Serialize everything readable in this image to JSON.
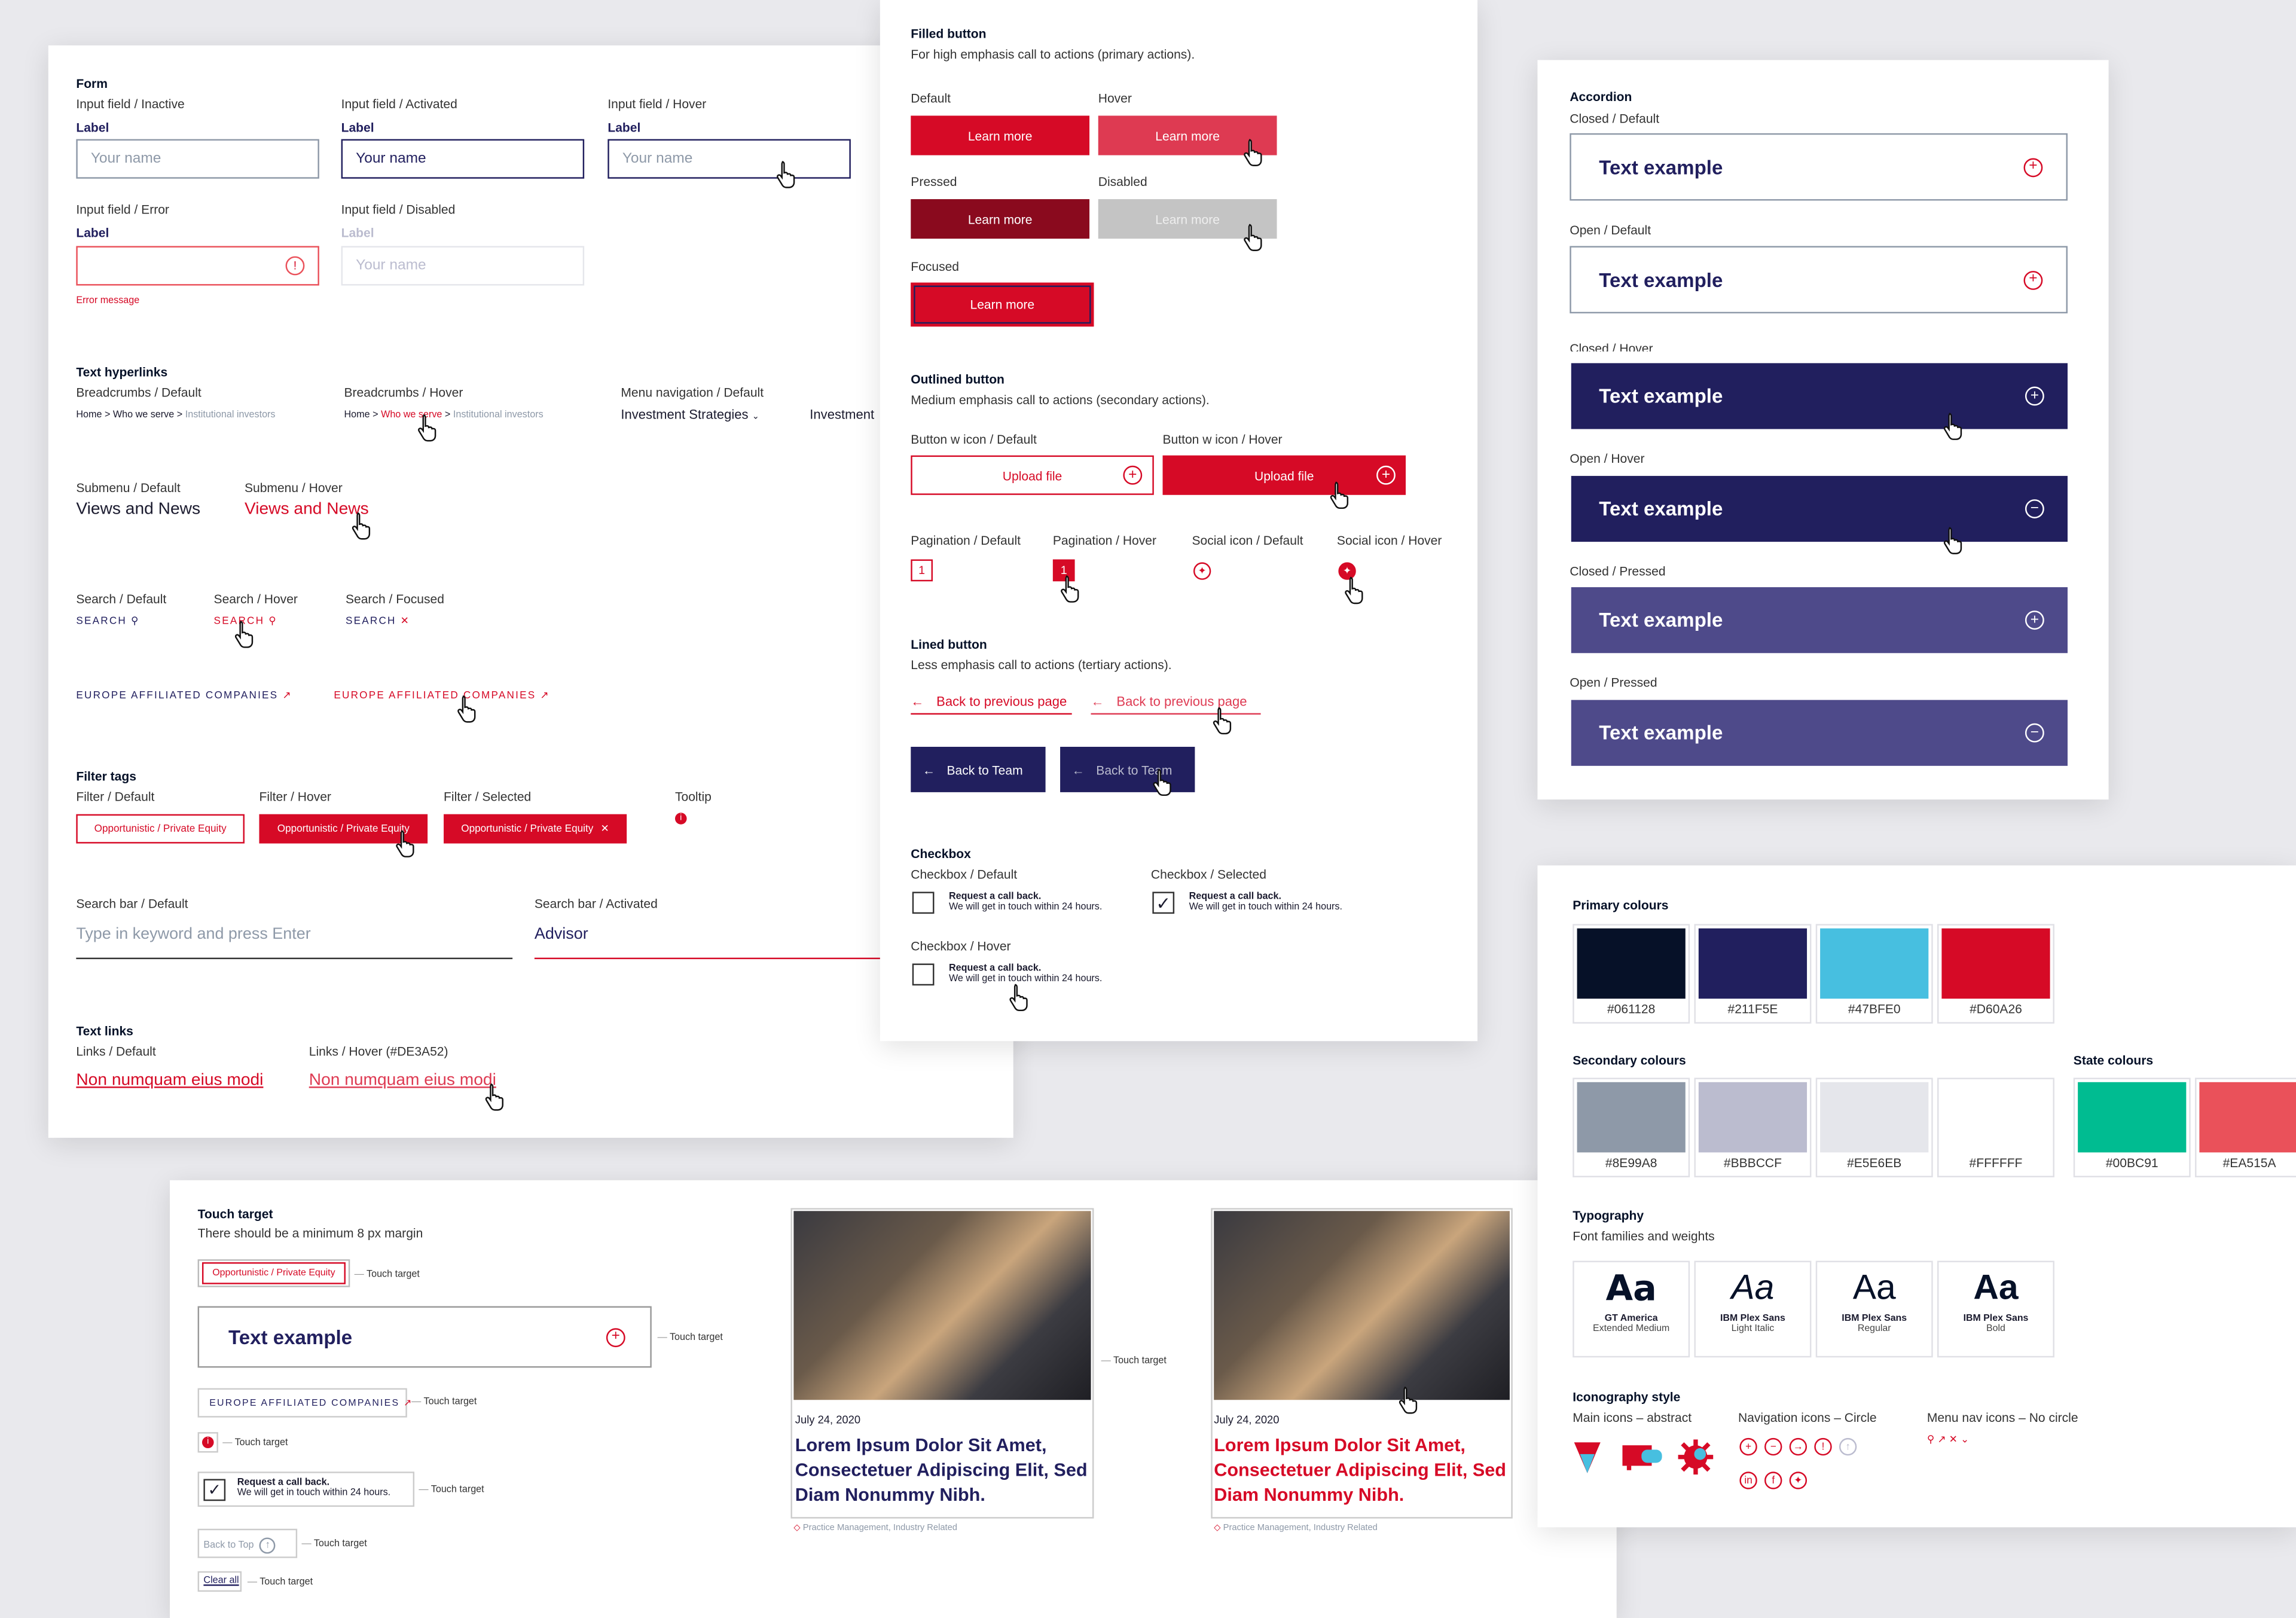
{
  "colors": {
    "dark": "#061128",
    "navy": "#211F5E",
    "sky": "#47BFE0",
    "red": "#D60A26",
    "grey": "#8E99A8",
    "lilac": "#BBBCCF",
    "light": "#E5E6EB",
    "white": "#FFFFFF",
    "green": "#00BC91",
    "coral": "#EA515A",
    "hover_red": "#DE3A52",
    "pressed_red": "#8A0A1E",
    "disabled": "#C4C4C4",
    "acc_pressed": "#4E4A8A"
  },
  "form": {
    "title": "Form",
    "inactive": {
      "caption": "Input field / Inactive",
      "label": "Label",
      "placeholder": "Your name"
    },
    "activated": {
      "caption": "Input field / Activated",
      "label": "Label",
      "value": "Your name"
    },
    "hover": {
      "caption": "Input field / Hover",
      "label": "Label",
      "placeholder": "Your name"
    },
    "error": {
      "caption": "Input field / Error",
      "label": "Label",
      "message": "Error message",
      "icon": "alert-circle-icon"
    },
    "disabled": {
      "caption": "Input field / Disabled",
      "label": "Label",
      "placeholder": "Your name"
    }
  },
  "hyperlinks": {
    "title": "Text hyperlinks",
    "bc_default": {
      "caption": "Breadcrumbs / Default",
      "home": "Home",
      "sep": ">",
      "who": "Who we serve",
      "current": "Institutional investors"
    },
    "bc_hover": {
      "caption": "Breadcrumbs / Hover",
      "home": "Home",
      "sep": ">",
      "who": "Who we serve",
      "current": "Institutional investors"
    },
    "menu": {
      "caption": "Menu navigation / Default",
      "item1": "Investment Strategies",
      "item2": "Investment"
    },
    "sub_default": {
      "caption": "Submenu / Default",
      "text": "Views and News"
    },
    "sub_hover": {
      "caption": "Submenu / Hover",
      "text": "Views and News"
    },
    "search_default": {
      "caption": "Search / Default",
      "text": "SEARCH"
    },
    "search_hover": {
      "caption": "Search / Hover",
      "text": "SEARCH"
    },
    "search_focused": {
      "caption": "Search / Focused",
      "text": "SEARCH"
    },
    "affiliated": "EUROPE AFFILIATED COMPANIES"
  },
  "filter": {
    "title": "Filter tags",
    "default": "Filter / Default",
    "hover": "Filter / Hover",
    "selected": "Filter / Selected",
    "tooltip": "Tooltip",
    "tag": "Opportunistic / Private Equity"
  },
  "searchbar": {
    "default_caption": "Search bar / Default",
    "placeholder": "Type in keyword and press Enter",
    "activated_caption": "Search bar / Activated",
    "value": "Advisor"
  },
  "textlinks": {
    "title": "Text links",
    "default": "Links / Default",
    "hover": "Links / Hover (#DE3A52)",
    "text": "Non numquam eius modi"
  },
  "buttons": {
    "filled": {
      "title": "Filled button",
      "desc": "For high emphasis call to actions (primary actions).",
      "default": "Default",
      "hover": "Hover",
      "pressed": "Pressed",
      "disabled": "Disabled",
      "focused": "Focused",
      "label": "Learn more"
    },
    "outlined": {
      "title": "Outlined button",
      "desc": "Medium emphasis call to actions (secondary actions).",
      "default": "Button w icon / Default",
      "hover": "Button w icon / Hover",
      "label": "Upload file"
    },
    "pag_default": "Pagination / Default",
    "pag_hover": "Pagination / Hover",
    "page": "1",
    "social_default": "Social icon / Default",
    "social_hover": "Social icon / Hover",
    "lined": {
      "title": "Lined button",
      "desc": "Less emphasis call to actions (tertiary actions).",
      "back": "Back to previous page",
      "team": "Back to Team"
    },
    "checkbox": {
      "title": "Checkbox",
      "default": "Checkbox / Default",
      "selected": "Checkbox / Selected",
      "hover": "Checkbox / Hover",
      "line1": "Request a call back.",
      "line2": "We will get in touch within 24 hours."
    }
  },
  "accordion": {
    "title": "Accordion",
    "text": "Text example",
    "states": [
      "Closed / Default",
      "Open / Default",
      "Closed / Hover",
      "Open / Hover",
      "Closed / Pressed",
      "Open / Pressed"
    ]
  },
  "palette": {
    "primary_title": "Primary colours",
    "primary": [
      "#061128",
      "#211F5E",
      "#47BFE0",
      "#D60A26"
    ],
    "secondary_title": "Secondary colours",
    "secondary": [
      "#8E99A8",
      "#BBBCCF",
      "#E5E6EB",
      "#FFFFFF"
    ],
    "state_title": "State colours",
    "state": [
      "#00BC91",
      "#EA515A"
    ]
  },
  "typography": {
    "title": "Typography",
    "desc": "Font families and weights",
    "glyph": "Aa",
    "fonts": [
      {
        "name": "GT America",
        "weight": "Extended Medium"
      },
      {
        "name": "IBM Plex Sans",
        "weight": "Light Italic"
      },
      {
        "name": "IBM Plex Sans",
        "weight": "Regular"
      },
      {
        "name": "IBM Plex Sans",
        "weight": "Bold"
      }
    ]
  },
  "iconography": {
    "title": "Iconography style",
    "main": "Main icons – abstract",
    "nav": "Navigation icons – Circle",
    "menu": "Menu nav icons – No circle"
  },
  "touch": {
    "title": "Touch target",
    "desc": "There should be a minimum 8 px margin",
    "label": "Touch target",
    "tag": "Opportunistic / Private Equity",
    "acc": "Text example",
    "affiliated": "EUROPE AFFILIATED COMPANIES",
    "cb1": "Request a call back.",
    "cb2": "We will get in touch within 24 hours.",
    "back_top": "Back to Top",
    "clear": "Clear all"
  },
  "cards": {
    "date": "July 24, 2020",
    "title": "Lorem Ipsum Dolor Sit Amet, Consectetuer Adipiscing Elit, Sed Diam Nonummy Nibh.",
    "tag1": "Practice Management",
    "tag2": "Industry Related",
    "touch": "Touch target"
  }
}
